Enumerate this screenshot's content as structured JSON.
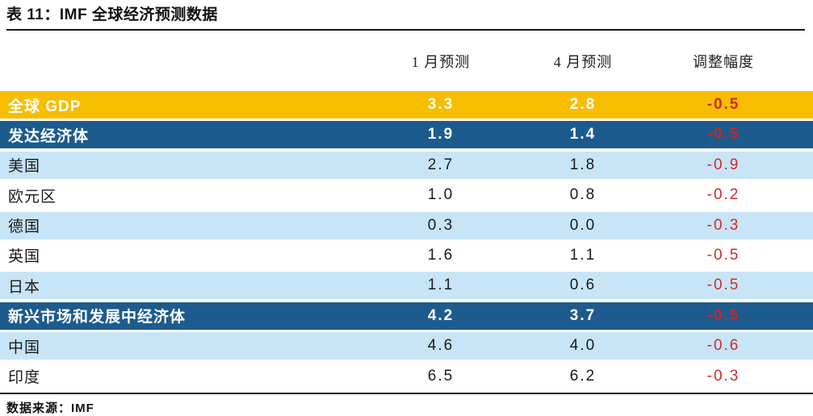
{
  "page": {
    "title": "表 11：IMF 全球经济预测数据",
    "source": "数据来源：IMF"
  },
  "table": {
    "columns": [
      "1 月预测",
      "4 月预测",
      "调整幅度"
    ],
    "rows": [
      {
        "label": "全球 GDP",
        "jan": "3.3",
        "apr": "2.8",
        "adj": "-0.5"
      },
      {
        "label": "发达经济体",
        "jan": "1.9",
        "apr": "1.4",
        "adj": "-0.5"
      },
      {
        "label": "美国",
        "jan": "2.7",
        "apr": "1.8",
        "adj": "-0.9"
      },
      {
        "label": "欧元区",
        "jan": "1.0",
        "apr": "0.8",
        "adj": "-0.2"
      },
      {
        "label": "德国",
        "jan": "0.3",
        "apr": "0.0",
        "adj": "-0.3"
      },
      {
        "label": "英国",
        "jan": "1.6",
        "apr": "1.1",
        "adj": "-0.5"
      },
      {
        "label": "日本",
        "jan": "1.1",
        "apr": "0.6",
        "adj": "-0.5"
      },
      {
        "label": "新兴市场和发展中经济体",
        "jan": "4.2",
        "apr": "3.7",
        "adj": "-0.5"
      },
      {
        "label": "中国",
        "jan": "4.6",
        "apr": "4.0",
        "adj": "-0.6"
      },
      {
        "label": "印度",
        "jan": "6.5",
        "apr": "6.2",
        "adj": "-0.3"
      }
    ]
  },
  "colors": {
    "gold_row": "#F7BE00",
    "dark_blue_row": "#1D5B8E",
    "light_blue_row": "#C8E5F8",
    "negative_red": "#D02A2A",
    "rule_black": "#1A1A1A"
  },
  "chart_data": {
    "type": "table",
    "title": "表 11：IMF 全球经济预测数据",
    "columns": [
      "",
      "1 月预测",
      "4 月预测",
      "调整幅度"
    ],
    "rows": [
      [
        "全球 GDP",
        3.3,
        2.8,
        -0.5
      ],
      [
        "发达经济体",
        1.9,
        1.4,
        -0.5
      ],
      [
        "美国",
        2.7,
        1.8,
        -0.9
      ],
      [
        "欧元区",
        1.0,
        0.8,
        -0.2
      ],
      [
        "德国",
        0.3,
        0.0,
        -0.3
      ],
      [
        "英国",
        1.6,
        1.1,
        -0.5
      ],
      [
        "日本",
        1.1,
        0.6,
        -0.5
      ],
      [
        "新兴市场和发展中经济体",
        4.2,
        3.7,
        -0.5
      ],
      [
        "中国",
        4.6,
        4.0,
        -0.6
      ],
      [
        "印度",
        6.5,
        6.2,
        -0.3
      ]
    ],
    "source": "数据来源：IMF",
    "layout_hints": {
      "highlight_rows": {
        "全球 GDP": "gold",
        "发达经济体": "dark-blue",
        "新兴市场和发展中经济体": "dark-blue"
      },
      "banded_rows": "alternating light-blue / white for country rows",
      "adjustment_column_color": "red",
      "gridlines": "none"
    }
  }
}
